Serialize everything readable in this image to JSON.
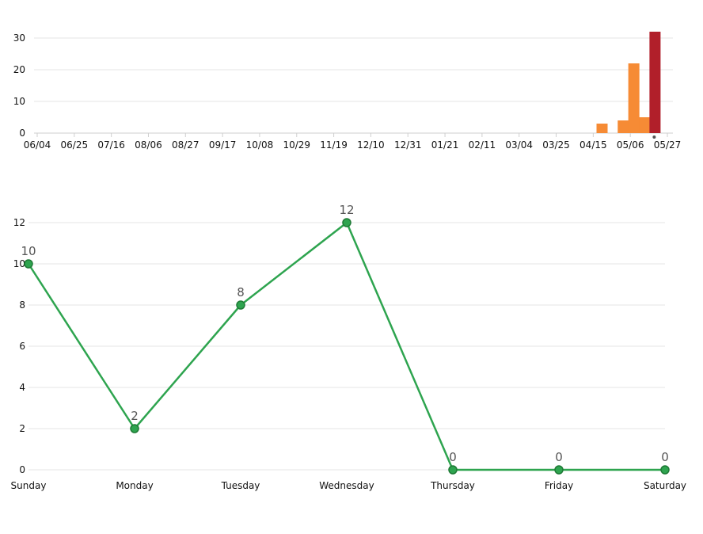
{
  "chart_data": [
    {
      "type": "bar",
      "title": "",
      "xlabel": "",
      "ylabel": "",
      "x_tick_labels": [
        "06/04",
        "06/25",
        "07/16",
        "08/06",
        "08/27",
        "09/17",
        "10/08",
        "10/29",
        "11/19",
        "12/10",
        "12/31",
        "01/21",
        "02/11",
        "03/04",
        "03/25",
        "04/15",
        "05/06",
        "05/27"
      ],
      "y_ticks": [
        0,
        10,
        20,
        30
      ],
      "ylim": [
        0,
        33
      ],
      "grid": true,
      "highlight_color": "#b11f2a",
      "bar_color": "#f68b35",
      "bars": [
        {
          "x": "04/20",
          "value": 3
        },
        {
          "x": "05/02",
          "value": 4
        },
        {
          "x": "05/08",
          "value": 22
        },
        {
          "x": "05/14",
          "value": 5
        },
        {
          "x": "05/20",
          "value": 32,
          "highlight": true
        }
      ]
    },
    {
      "type": "line",
      "title": "",
      "xlabel": "",
      "ylabel": "",
      "categories": [
        "Sunday",
        "Monday",
        "Tuesday",
        "Wednesday",
        "Thursday",
        "Friday",
        "Saturday"
      ],
      "values": [
        10,
        2,
        8,
        12,
        0,
        0,
        0
      ],
      "data_labels": [
        "10",
        "2",
        "8",
        "12",
        "0",
        "0",
        "0"
      ],
      "y_ticks": [
        0,
        2,
        4,
        6,
        8,
        10,
        12
      ],
      "ylim": [
        0,
        12
      ],
      "grid": true,
      "line_color": "#2ea44f"
    }
  ]
}
